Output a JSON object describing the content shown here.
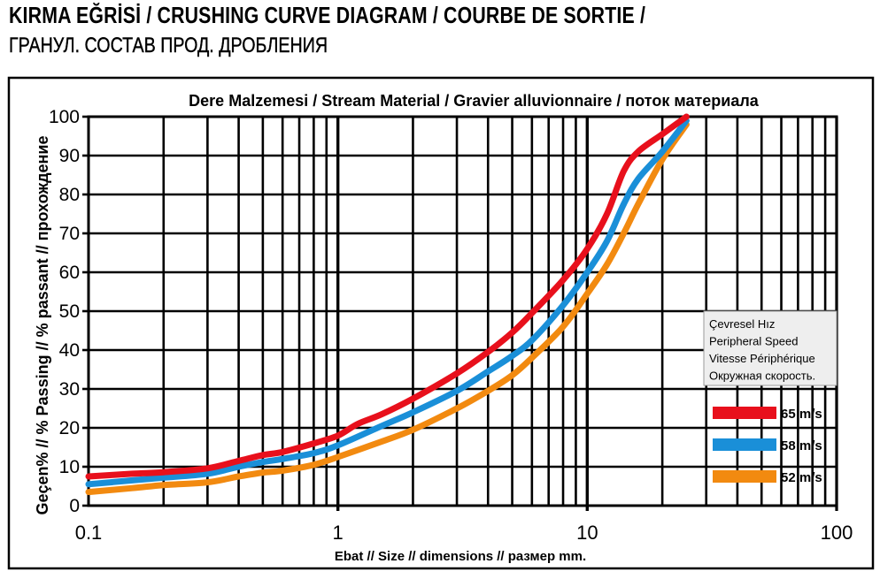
{
  "heading": {
    "line1": "KIRMA EĞRİSİ / CRUSHING CURVE DIAGRAM / COURBE DE SORTIE /",
    "line2": "ГРАНУЛ. СОСТАВ ПРОД. ДРОБЛЕНИЯ"
  },
  "chart_data": {
    "type": "line",
    "title": "Dere Malzemesi / Stream Material / Gravier alluvionnaire / поток материала",
    "xlabel": "Ebat // Size // dimensions // размер  mm.",
    "ylabel": "Geçen% // % Passing // % passant // прохождение",
    "x_scale": "log",
    "xlim": [
      0.1,
      100
    ],
    "ylim": [
      0,
      100
    ],
    "x_tick_labels": [
      "0.1",
      "1",
      "10",
      "100"
    ],
    "y_tick_labels": [
      "0",
      "10",
      "20",
      "30",
      "40",
      "50",
      "60",
      "70",
      "80",
      "90",
      "100"
    ],
    "grid": true,
    "legend": {
      "position": "right",
      "title_lines": [
        "Çevresel Hız",
        "Peripheral Speed",
        "Vitesse Périphérique",
        "Окружная скорость."
      ]
    },
    "series": [
      {
        "name": "65 m/s",
        "color": "#e8101c",
        "points": [
          [
            0.1,
            7.5
          ],
          [
            0.15,
            8.2
          ],
          [
            0.2,
            8.6
          ],
          [
            0.3,
            9.6
          ],
          [
            0.4,
            11.5
          ],
          [
            0.5,
            13
          ],
          [
            0.6,
            13.8
          ],
          [
            0.8,
            16
          ],
          [
            1.0,
            18
          ],
          [
            1.2,
            21
          ],
          [
            1.5,
            23.5
          ],
          [
            2,
            27.5
          ],
          [
            3,
            34
          ],
          [
            4,
            39.5
          ],
          [
            5,
            44.5
          ],
          [
            6,
            49.5
          ],
          [
            8,
            58
          ],
          [
            10,
            66
          ],
          [
            12,
            75
          ],
          [
            14,
            86
          ],
          [
            16,
            91
          ],
          [
            20,
            95.5
          ],
          [
            25,
            100
          ]
        ]
      },
      {
        "name": "58 m/s",
        "color": "#1a8fd8",
        "points": [
          [
            0.1,
            5.5
          ],
          [
            0.15,
            6.5
          ],
          [
            0.2,
            7.2
          ],
          [
            0.3,
            8.2
          ],
          [
            0.4,
            10
          ],
          [
            0.5,
            11.2
          ],
          [
            0.6,
            12
          ],
          [
            0.8,
            13.5
          ],
          [
            1.0,
            15.5
          ],
          [
            1.5,
            20.5
          ],
          [
            2,
            24
          ],
          [
            3,
            29.5
          ],
          [
            4,
            34.5
          ],
          [
            5,
            38.5
          ],
          [
            6,
            42.5
          ],
          [
            8,
            51.5
          ],
          [
            10,
            60
          ],
          [
            12,
            68
          ],
          [
            14,
            77.5
          ],
          [
            16,
            84
          ],
          [
            20,
            91
          ],
          [
            25,
            99
          ]
        ]
      },
      {
        "name": "52 m/s",
        "color": "#f28a10",
        "points": [
          [
            0.1,
            3.5
          ],
          [
            0.15,
            4.5
          ],
          [
            0.2,
            5.3
          ],
          [
            0.3,
            6
          ],
          [
            0.4,
            7.5
          ],
          [
            0.5,
            8.5
          ],
          [
            0.6,
            9
          ],
          [
            0.8,
            10.5
          ],
          [
            1.0,
            12.5
          ],
          [
            1.5,
            16.5
          ],
          [
            2,
            19.5
          ],
          [
            3,
            25
          ],
          [
            4,
            29.5
          ],
          [
            5,
            33.5
          ],
          [
            6,
            38
          ],
          [
            8,
            46
          ],
          [
            10,
            54.5
          ],
          [
            12,
            62
          ],
          [
            14,
            70
          ],
          [
            16,
            77.5
          ],
          [
            20,
            89
          ],
          [
            25,
            98
          ]
        ]
      }
    ]
  }
}
